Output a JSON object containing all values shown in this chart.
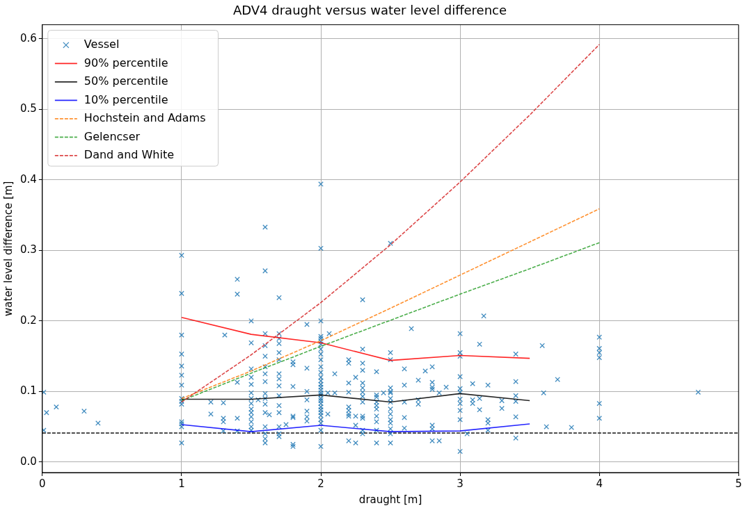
{
  "chart_data": {
    "type": "scatter",
    "title": "ADV4 draught versus water level difference",
    "xlabel": "draught [m]",
    "ylabel": "water level difference [m]",
    "xlim": [
      0,
      5
    ],
    "ylim": [
      -0.015,
      0.62
    ],
    "xticks": [
      0,
      1,
      2,
      3,
      4,
      5
    ],
    "yticks": [
      {
        "value": 0,
        "label": "0.0"
      },
      {
        "value": 0.1,
        "label": "0.1"
      },
      {
        "value": 0.2,
        "label": "0.2"
      },
      {
        "value": 0.3,
        "label": "0.3"
      },
      {
        "value": 0.4,
        "label": "0.4"
      },
      {
        "value": 0.5,
        "label": "0.5"
      },
      {
        "value": 0.6,
        "label": "0.6"
      }
    ],
    "grid": true,
    "legend": "top left",
    "ref_lines": [
      {
        "axis": "y",
        "value": 0.041,
        "color": "#000000",
        "line_style": "dashed"
      }
    ],
    "series": [
      {
        "name": "Vessel",
        "type": "scatter",
        "marker": "cross",
        "color": "#1f77b4",
        "x": [
          0.01,
          0.03,
          0.01,
          0.1,
          0.3,
          0.4,
          1,
          1,
          1,
          1,
          1,
          1,
          1,
          1,
          1,
          1,
          1,
          1,
          1,
          1,
          1.21,
          1.21,
          1.31,
          1.3,
          1.3,
          1.3,
          1.3,
          1.4,
          1.4,
          1.4,
          1.4,
          1.4,
          1.5,
          1.5,
          1.5,
          1.5,
          1.5,
          1.5,
          1.5,
          1.5,
          1.5,
          1.5,
          1.5,
          1.5,
          1.5,
          1.5,
          1.55,
          1.6,
          1.6,
          1.6,
          1.6,
          1.6,
          1.6,
          1.6,
          1.6,
          1.6,
          1.6,
          1.6,
          1.6,
          1.6,
          1.6,
          1.6,
          1.6,
          1.63,
          1.7,
          1.7,
          1.7,
          1.7,
          1.7,
          1.7,
          1.7,
          1.7,
          1.7,
          1.7,
          1.7,
          1.7,
          1.7,
          1.7,
          1.7,
          1.75,
          1.8,
          1.8,
          1.8,
          1.8,
          1.8,
          1.8,
          1.8,
          1.9,
          1.9,
          1.9,
          1.9,
          1.9,
          1.9,
          1.9,
          2,
          2,
          2,
          2,
          2,
          2,
          2,
          2,
          2,
          2,
          2,
          2,
          2,
          2,
          2,
          2,
          2,
          2,
          2,
          2,
          2,
          2,
          2,
          2,
          2,
          2,
          2,
          2,
          2,
          2,
          2.05,
          2.05,
          2.06,
          2.1,
          2.1,
          2.2,
          2.2,
          2.2,
          2.2,
          2.2,
          2.2,
          2.2,
          2.2,
          2.2,
          2.25,
          2.25,
          2.25,
          2.25,
          2.3,
          2.3,
          2.3,
          2.3,
          2.3,
          2.3,
          2.3,
          2.3,
          2.3,
          2.3,
          2.3,
          2.3,
          2.3,
          2.4,
          2.4,
          2.4,
          2.4,
          2.4,
          2.4,
          2.4,
          2.4,
          2.4,
          2.4,
          2.45,
          2.5,
          2.5,
          2.5,
          2.5,
          2.5,
          2.5,
          2.5,
          2.5,
          2.5,
          2.5,
          2.5,
          2.5,
          2.5,
          2.5,
          2.5,
          2.6,
          2.6,
          2.6,
          2.6,
          2.6,
          2.65,
          2.7,
          2.7,
          2.7,
          2.75,
          2.8,
          2.8,
          2.8,
          2.8,
          2.8,
          2.8,
          2.8,
          2.85,
          2.85,
          2.9,
          3,
          3,
          3,
          3,
          3,
          3,
          3,
          3,
          3,
          3,
          3,
          3.05,
          3.09,
          3.09,
          3.09,
          3.14,
          3.14,
          3.14,
          3.17,
          3.2,
          3.2,
          3.2,
          3.2,
          3.3,
          3.3,
          3.4,
          3.4,
          3.4,
          3.4,
          3.4,
          3.4,
          3.59,
          3.6,
          3.62,
          3.7,
          3.8,
          4,
          4,
          4,
          4,
          4,
          4,
          4.71
        ],
        "values": [
          0.099,
          0.07,
          0.045,
          0.078,
          0.072,
          0.055,
          0.293,
          0.239,
          0.18,
          0.153,
          0.136,
          0.123,
          0.109,
          0.09,
          0.086,
          0.082,
          0.057,
          0.054,
          0.05,
          0.027,
          0.085,
          0.068,
          0.18,
          0.084,
          0.062,
          0.057,
          0.044,
          0.259,
          0.238,
          0.113,
          0.062,
          0.044,
          0.2,
          0.169,
          0.132,
          0.12,
          0.11,
          0.098,
          0.09,
          0.083,
          0.075,
          0.07,
          0.064,
          0.057,
          0.05,
          0.045,
          0.088,
          0.333,
          0.271,
          0.182,
          0.165,
          0.15,
          0.135,
          0.125,
          0.114,
          0.097,
          0.09,
          0.082,
          0.07,
          0.05,
          0.04,
          0.033,
          0.027,
          0.067,
          0.233,
          0.182,
          0.175,
          0.168,
          0.155,
          0.145,
          0.125,
          0.118,
          0.108,
          0.094,
          0.08,
          0.07,
          0.05,
          0.04,
          0.036,
          0.053,
          0.142,
          0.138,
          0.107,
          0.065,
          0.063,
          0.025,
          0.022,
          0.195,
          0.133,
          0.1,
          0.088,
          0.072,
          0.064,
          0.058,
          0.394,
          0.303,
          0.2,
          0.178,
          0.175,
          0.171,
          0.167,
          0.16,
          0.153,
          0.145,
          0.135,
          0.127,
          0.12,
          0.115,
          0.11,
          0.106,
          0.102,
          0.098,
          0.095,
          0.09,
          0.087,
          0.083,
          0.078,
          0.074,
          0.07,
          0.066,
          0.06,
          0.055,
          0.045,
          0.022,
          0.098,
          0.068,
          0.182,
          0.125,
          0.098,
          0.145,
          0.14,
          0.112,
          0.099,
          0.078,
          0.073,
          0.068,
          0.065,
          0.03,
          0.12,
          0.065,
          0.052,
          0.027,
          0.23,
          0.16,
          0.14,
          0.13,
          0.112,
          0.105,
          0.099,
          0.093,
          0.085,
          0.065,
          0.062,
          0.045,
          0.04,
          0.128,
          0.095,
          0.092,
          0.085,
          0.08,
          0.075,
          0.065,
          0.057,
          0.045,
          0.027,
          0.098,
          0.31,
          0.155,
          0.145,
          0.105,
          0.1,
          0.098,
          0.09,
          0.085,
          0.075,
          0.068,
          0.06,
          0.055,
          0.047,
          0.04,
          0.027,
          0.132,
          0.109,
          0.085,
          0.063,
          0.048,
          0.189,
          0.116,
          0.088,
          0.082,
          0.129,
          0.135,
          0.113,
          0.106,
          0.052,
          0.047,
          0.03,
          0.103,
          0.098,
          0.03,
          0.106,
          0.182,
          0.155,
          0.15,
          0.121,
          0.104,
          0.099,
          0.089,
          0.083,
          0.073,
          0.06,
          0.015,
          0.04,
          0.111,
          0.088,
          0.083,
          0.167,
          0.09,
          0.074,
          0.207,
          0.109,
          0.06,
          0.055,
          0.045,
          0.087,
          0.076,
          0.153,
          0.114,
          0.094,
          0.086,
          0.064,
          0.034,
          0.165,
          0.098,
          0.05,
          0.117,
          0.049,
          0.177,
          0.161,
          0.155,
          0.148,
          0.083,
          0.062,
          0.099
        ]
      },
      {
        "name": "90% percentile",
        "type": "line",
        "marker": "none",
        "line_style": "solid",
        "color": "#ff0000",
        "x": [
          1,
          1.5,
          2,
          2.5,
          3,
          3.5
        ],
        "values": [
          0.205,
          0.181,
          0.169,
          0.144,
          0.151,
          0.147
        ]
      },
      {
        "name": "50% percentile",
        "type": "line",
        "marker": "none",
        "line_style": "solid",
        "color": "#000000",
        "x": [
          1,
          1.5,
          2,
          2.5,
          3,
          3.5
        ],
        "values": [
          0.089,
          0.089,
          0.095,
          0.085,
          0.097,
          0.087
        ]
      },
      {
        "name": "10% percentile",
        "type": "line",
        "marker": "none",
        "line_style": "solid",
        "color": "#0000ff",
        "x": [
          1,
          1.5,
          2,
          2.5,
          3,
          3.5
        ],
        "values": [
          0.053,
          0.043,
          0.052,
          0.043,
          0.044,
          0.054
        ]
      },
      {
        "name": "Hochstein and Adams",
        "type": "line",
        "marker": "none",
        "line_style": "dashed",
        "color": "#ff7f0e",
        "x": [
          1,
          1.5,
          2,
          2.5,
          3,
          3.5,
          4
        ],
        "values": [
          0.09,
          0.129,
          0.172,
          0.218,
          0.265,
          0.312,
          0.359
        ]
      },
      {
        "name": "Gelencser",
        "type": "line",
        "marker": "none",
        "line_style": "dashed",
        "color": "#2ca02c",
        "x": [
          1,
          1.5,
          2,
          2.5,
          3,
          3.5,
          4
        ],
        "values": [
          0.087,
          0.126,
          0.164,
          0.201,
          0.238,
          0.274,
          0.311
        ]
      },
      {
        "name": "Dand and White",
        "type": "line",
        "marker": "none",
        "line_style": "dashed",
        "color": "#d62728",
        "x": [
          1,
          1.5,
          2,
          2.5,
          3,
          3.5,
          4
        ],
        "values": [
          0.085,
          0.152,
          0.226,
          0.308,
          0.397,
          0.492,
          0.592
        ]
      }
    ]
  }
}
